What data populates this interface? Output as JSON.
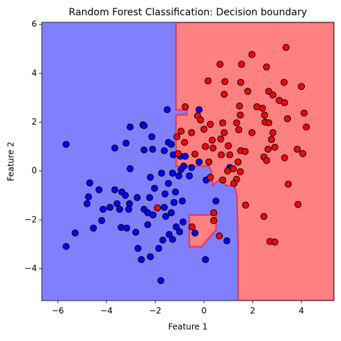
{
  "chart_data": {
    "type": "scatter",
    "title": "Random Forest Classification: Decision boundary",
    "xlabel": "Feature 1",
    "ylabel": "Feature 2",
    "xlim": [
      -6.66,
      5.34
    ],
    "ylim": [
      -5.31,
      6.09
    ],
    "xticks": [
      {
        "value": -6,
        "label": "−6"
      },
      {
        "value": -4,
        "label": "−4"
      },
      {
        "value": -2,
        "label": "−2"
      },
      0,
      2,
      4
    ],
    "yticks": [
      {
        "value": -4,
        "label": "−4"
      },
      {
        "value": -2,
        "label": "−2"
      },
      0,
      2,
      4,
      6
    ],
    "background_color": "#8080ff",
    "regions": [
      {
        "color": "#ff8080",
        "edge_color": "#d9406a",
        "x": [
          -1.15,
          5.34,
          5.34,
          1.4,
          1.4,
          1.35,
          1.25,
          0.9,
          0.7,
          0.35,
          0.3,
          0.2,
          -1.15,
          -1.15,
          -0.7,
          -0.7,
          -1.15
        ],
        "y": [
          6.09,
          6.09,
          -5.31,
          -5.31,
          -3.0,
          -1.0,
          -0.6,
          -0.6,
          -0.3,
          -0.6,
          0.0,
          0.2,
          0.2,
          2.3,
          2.3,
          2.5,
          2.5
        ]
      },
      {
        "color": "#ff8080",
        "edge_color": "#d9406a",
        "x": [
          -0.6,
          0.5,
          0.5,
          -0.1,
          -0.6
        ],
        "y": [
          -1.8,
          -1.8,
          -2.4,
          -3.1,
          -3.1
        ]
      }
    ],
    "series": [
      {
        "color": "#0000ff",
        "edge_color": "#000000",
        "x": [
          -5.66,
          -1.51,
          -0.2,
          -2.51,
          -2.46,
          -3.03,
          -2.14,
          -3.2,
          -3.66,
          -2.46,
          -2.11,
          -1.46,
          -1.34,
          -1.63,
          -1.26,
          -3.03,
          -0.97,
          -0.77,
          -0.83,
          -0.51,
          -0.94,
          -1.29,
          -1.03,
          -0.6,
          -0.2,
          0.09,
          1.06,
          -1.74,
          -2.2,
          -1.46,
          -2.03,
          -1.6,
          -2.23,
          -2.74,
          -3.37,
          -3.66,
          -3.23,
          -4.31,
          -4.69,
          -4.8,
          -4.74,
          -4.14,
          -3.86,
          -3.57,
          -3.46,
          -3.06,
          -3.09,
          -2.46,
          -2.31,
          -2.09,
          -1.63,
          -1.23,
          -1.17,
          -0.89,
          -1.34,
          -1.57,
          -3.4,
          -3.17,
          -4.54,
          -5.29,
          -5.66,
          -4.2,
          -2.8,
          -2.31,
          -1.69,
          -1.86,
          -2.71,
          -2.57,
          -2.2,
          -1.77,
          -1.14,
          -1.0,
          -1.43,
          -1.29,
          -0.86,
          0.06,
          0.94,
          -0.37,
          0.49
        ],
        "values": [
          1.09,
          2.51,
          2.51,
          1.89,
          1.86,
          1.8,
          1.4,
          1.14,
          0.94,
          0.86,
          0.89,
          1.17,
          1.09,
          0.83,
          0.66,
          0.09,
          0.6,
          0.6,
          0.2,
          0.14,
          0.06,
          -0.09,
          -0.2,
          -0.2,
          0.37,
          -0.37,
          0.14,
          -0.09,
          -0.26,
          -0.51,
          -0.71,
          -0.94,
          -1.09,
          -1.09,
          -0.86,
          -0.77,
          -1.0,
          -0.77,
          -0.49,
          -1.34,
          -1.06,
          -1.57,
          -1.49,
          -1.34,
          -1.57,
          -1.34,
          -1.57,
          -1.57,
          -1.71,
          -1.8,
          -1.49,
          -1.29,
          -0.86,
          -1.23,
          -1.71,
          -1.86,
          -2.31,
          -2.34,
          -2.34,
          -2.54,
          -3.09,
          -2.03,
          -2.51,
          -2.2,
          -2.83,
          -3.17,
          -3.17,
          -3.63,
          -3.51,
          -4.49,
          -2.29,
          -2.49,
          -2.6,
          -2.8,
          -2.09,
          -3.63,
          -2.86,
          -2.54,
          -1.23
        ]
      },
      {
        "color": "#ff0000",
        "edge_color": "#000000",
        "x": [
          1.97,
          0.66,
          1.54,
          3.37,
          2.57,
          0.17,
          0.86,
          1.51,
          3.29,
          4.0,
          0.83,
          1.8,
          2.66,
          2.83,
          1.46,
          3.09,
          3.31,
          -0.77,
          1.49,
          2.17,
          2.4,
          2.49,
          -0.26,
          2.51,
          3.43,
          4.11,
          2.66,
          -0.14,
          0.26,
          0.77,
          1.34,
          1.43,
          1.97,
          2.83,
          2.77,
          4.2,
          -0.94,
          -0.51,
          0.0,
          -1.11,
          0.83,
          0.69,
          0.34,
          1.0,
          1.51,
          1.69,
          2.63,
          3.83,
          4.06,
          -0.8,
          0.06,
          -1.06,
          -0.37,
          0.37,
          0.71,
          1.06,
          2.46,
          3.31,
          2.91,
          2.57,
          1.4,
          1.2,
          1.49,
          0.97,
          1.34,
          1.23,
          0.77,
          0.26,
          3.46,
          3.86,
          1.71,
          2.46,
          2.71,
          2.91,
          -1.91,
          -0.49,
          0.4,
          0.63,
          0.4,
          0.2
        ],
        "values": [
          4.77,
          4.37,
          4.37,
          5.06,
          4.26,
          3.69,
          3.66,
          3.63,
          3.63,
          3.46,
          3.14,
          3.26,
          3.26,
          3.11,
          2.66,
          2.89,
          2.8,
          2.63,
          2.29,
          2.63,
          2.57,
          2.29,
          2.26,
          2.0,
          2.14,
          2.37,
          1.97,
          2.09,
          1.91,
          1.97,
          1.97,
          1.69,
          1.57,
          1.57,
          1.29,
          1.8,
          1.63,
          1.57,
          1.71,
          1.4,
          1.57,
          1.31,
          1.26,
          1.03,
          0.83,
          0.8,
          0.89,
          0.89,
          0.71,
          1.17,
          1.0,
          0.71,
          0.69,
          0.94,
          0.66,
          0.66,
          0.57,
          0.54,
          0.97,
          0.43,
          0.37,
          0.09,
          -0.03,
          0.0,
          -0.34,
          -0.51,
          -0.37,
          -0.26,
          -0.54,
          -1.37,
          -1.4,
          -1.86,
          -2.89,
          -2.91,
          -1.51,
          -2.29,
          -2.03,
          -2.66,
          -1.71,
          0.37
        ]
      }
    ]
  }
}
